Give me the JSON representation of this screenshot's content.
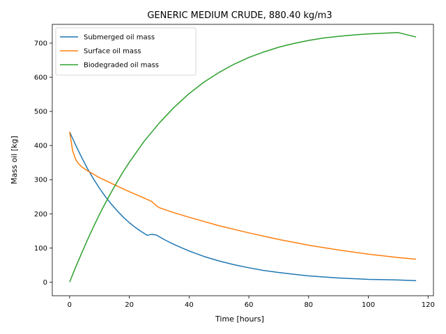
{
  "chart_data": {
    "type": "line",
    "title": "GENERIC MEDIUM CRUDE,  880.40 kg/m3",
    "xlabel": "Time [hours]",
    "ylabel": "Mass oil [kg]",
    "xlim": [
      -5.8,
      121.8
    ],
    "ylim": [
      -40,
      755
    ],
    "xticks": [
      0,
      20,
      40,
      60,
      80,
      100,
      120
    ],
    "yticks": [
      0,
      100,
      200,
      300,
      400,
      500,
      600,
      700
    ],
    "grid": false,
    "legend_position": "top-left",
    "series": [
      {
        "name": "Submerged oil mass",
        "color": "#1f77b4",
        "x": [
          0,
          2,
          4,
          6,
          8,
          10,
          12,
          14,
          16,
          18,
          20,
          22,
          24,
          26,
          27.5,
          29,
          30,
          32,
          35,
          40,
          45,
          50,
          55,
          60,
          65,
          70,
          75,
          80,
          85,
          90,
          95,
          100,
          105,
          110,
          116
        ],
        "y": [
          440,
          402,
          366,
          332,
          302,
          275,
          250,
          228,
          208,
          190,
          174,
          160,
          148,
          137,
          140,
          138,
          133,
          123,
          110,
          91,
          75,
          62,
          51,
          42,
          34,
          28,
          23,
          18,
          15,
          12,
          10,
          8,
          7,
          6,
          4
        ]
      },
      {
        "name": "Surface oil mass",
        "color": "#ff7f0e",
        "x": [
          0,
          1,
          2,
          3,
          4,
          6,
          8,
          10,
          15,
          20,
          25,
          27.5,
          29,
          30,
          35,
          40,
          50,
          60,
          70,
          80,
          90,
          100,
          110,
          116
        ],
        "y": [
          440,
          385,
          360,
          347,
          338,
          326,
          316,
          306,
          285,
          265,
          246,
          236,
          224,
          218,
          203,
          190,
          165,
          144,
          125,
          108,
          94,
          82,
          72,
          67
        ]
      },
      {
        "name": "Biodegraded oil mass",
        "color": "#2ca02c",
        "x": [
          0,
          2,
          4,
          6,
          8,
          10,
          12,
          14,
          16,
          18,
          20,
          25,
          30,
          35,
          40,
          45,
          50,
          55,
          60,
          65,
          70,
          75,
          80,
          85,
          90,
          95,
          100,
          105,
          110,
          116
        ],
        "y": [
          0,
          43,
          84,
          124,
          162,
          198,
          232,
          264,
          295,
          324,
          351,
          413,
          466,
          512,
          552,
          586,
          614,
          638,
          658,
          674,
          688,
          699,
          708,
          715,
          720,
          724,
          727,
          729,
          731,
          718
        ]
      }
    ]
  }
}
